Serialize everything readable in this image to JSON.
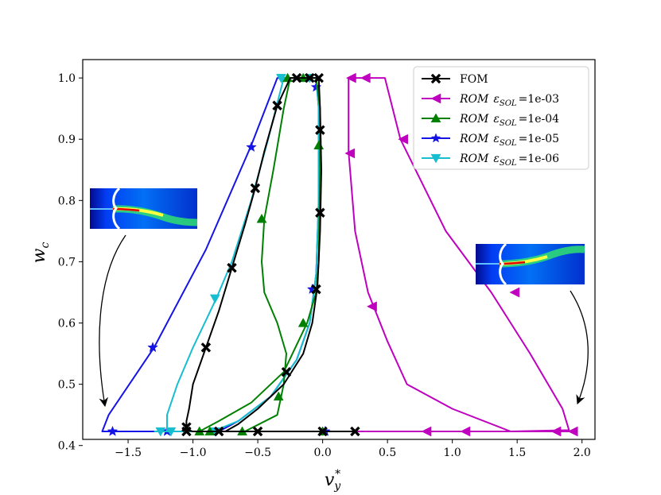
{
  "chart_data": {
    "type": "line",
    "xlabel": "v_y^*",
    "ylabel": "w_c",
    "xlim": [
      -1.85,
      2.1
    ],
    "ylim": [
      0.41,
      1.03
    ],
    "x_ticks": [
      "−1.5",
      "−1.0",
      "−0.5",
      "0.0",
      "0.5",
      "1.0",
      "1.5",
      "2.0"
    ],
    "x_tick_values": [
      -1.5,
      -1.0,
      -0.5,
      0.0,
      0.5,
      1.0,
      1.5,
      2.0
    ],
    "y_ticks": [
      "0.4",
      "0.5",
      "0.6",
      "0.7",
      "0.8",
      "0.9",
      "1.0"
    ],
    "y_tick_values": [
      0.4,
      0.5,
      0.6,
      0.7,
      0.8,
      0.9,
      1.0
    ],
    "grid": false,
    "legend_position": "top-right",
    "series": [
      {
        "name": "FOM",
        "color": "#000000",
        "marker": "X",
        "points": [
          [
            0.25,
            0.423
          ],
          [
            0.0,
            0.423
          ],
          [
            -0.5,
            0.423
          ],
          [
            -0.8,
            0.423
          ],
          [
            -1.0,
            0.423
          ],
          [
            -1.05,
            0.425
          ],
          [
            -1.05,
            0.44
          ],
          [
            -1.03,
            0.46
          ],
          [
            -1.0,
            0.5
          ],
          [
            -0.9,
            0.56
          ],
          [
            -0.8,
            0.62
          ],
          [
            -0.7,
            0.69
          ],
          [
            -0.6,
            0.76
          ],
          [
            -0.52,
            0.82
          ],
          [
            -0.45,
            0.88
          ],
          [
            -0.35,
            0.955
          ],
          [
            -0.25,
            1.0
          ],
          [
            -0.1,
            1.0
          ],
          [
            -0.03,
            1.0
          ],
          [
            -0.02,
            0.95
          ],
          [
            -0.01,
            0.85
          ],
          [
            -0.02,
            0.75
          ],
          [
            -0.04,
            0.66
          ],
          [
            -0.08,
            0.6
          ],
          [
            -0.15,
            0.55
          ],
          [
            -0.3,
            0.5
          ],
          [
            -0.5,
            0.46
          ],
          [
            -0.65,
            0.435
          ],
          [
            -0.75,
            0.423
          ]
        ],
        "marker_points": [
          [
            0.25,
            0.423
          ],
          [
            0.0,
            0.423
          ],
          [
            -0.5,
            0.423
          ],
          [
            -1.05,
            0.423
          ],
          [
            -1.05,
            0.43
          ],
          [
            -0.9,
            0.56
          ],
          [
            -0.7,
            0.69
          ],
          [
            -0.52,
            0.82
          ],
          [
            -0.35,
            0.955
          ],
          [
            -0.2,
            1.0
          ],
          [
            -0.1,
            1.0
          ],
          [
            -0.03,
            1.0
          ],
          [
            -0.02,
            0.915
          ],
          [
            -0.02,
            0.78
          ],
          [
            -0.05,
            0.655
          ],
          [
            -0.28,
            0.52
          ],
          [
            -0.8,
            0.423
          ]
        ]
      },
      {
        "name": "ROM ε_SOL = 1e-03",
        "color": "#bf00bf",
        "marker": "<",
        "points": [
          [
            1.95,
            0.423
          ],
          [
            1.9,
            0.423
          ],
          [
            1.45,
            0.423
          ],
          [
            1.0,
            0.423
          ],
          [
            0.5,
            0.423
          ],
          [
            0.2,
            0.423
          ],
          [
            0.5,
            0.423
          ],
          [
            1.45,
            0.423
          ],
          [
            1.9,
            0.425
          ],
          [
            1.85,
            0.46
          ],
          [
            1.6,
            0.55
          ],
          [
            1.3,
            0.65
          ],
          [
            0.95,
            0.75
          ],
          [
            0.6,
            0.9
          ],
          [
            0.48,
            1.0
          ],
          [
            0.2,
            1.0
          ],
          [
            0.2,
            0.95
          ],
          [
            0.2,
            0.88
          ],
          [
            0.25,
            0.75
          ],
          [
            0.35,
            0.65
          ],
          [
            0.5,
            0.57
          ],
          [
            0.65,
            0.5
          ],
          [
            1.0,
            0.46
          ],
          [
            1.45,
            0.423
          ]
        ],
        "marker_points": [
          [
            1.93,
            0.423
          ],
          [
            1.8,
            0.423
          ],
          [
            1.1,
            0.423
          ],
          [
            0.8,
            0.423
          ],
          [
            1.48,
            0.65
          ],
          [
            0.62,
            0.9
          ],
          [
            0.33,
            1.0
          ],
          [
            0.22,
            1.0
          ],
          [
            0.21,
            0.877
          ],
          [
            0.38,
            0.627
          ]
        ]
      },
      {
        "name": "ROM ε_SOL = 1e-04",
        "color": "#008000",
        "marker": "^",
        "points": [
          [
            -0.25,
            0.423
          ],
          [
            -0.6,
            0.423
          ],
          [
            -0.95,
            0.423
          ],
          [
            -0.6,
            0.423
          ],
          [
            -0.35,
            0.45
          ],
          [
            -0.3,
            0.5
          ],
          [
            -0.28,
            0.55
          ],
          [
            -0.35,
            0.6
          ],
          [
            -0.45,
            0.65
          ],
          [
            -0.47,
            0.7
          ],
          [
            -0.45,
            0.77
          ],
          [
            -0.38,
            0.85
          ],
          [
            -0.3,
            0.95
          ],
          [
            -0.25,
            1.0
          ],
          [
            -0.05,
            1.0
          ],
          [
            -0.02,
            0.95
          ],
          [
            -0.02,
            0.85
          ],
          [
            -0.03,
            0.7
          ],
          [
            -0.05,
            0.65
          ],
          [
            -0.12,
            0.6
          ],
          [
            -0.3,
            0.52
          ],
          [
            -0.55,
            0.47
          ],
          [
            -0.8,
            0.44
          ],
          [
            -0.95,
            0.423
          ]
        ],
        "marker_points": [
          [
            -0.95,
            0.423
          ],
          [
            -0.87,
            0.423
          ],
          [
            -0.62,
            0.423
          ],
          [
            0.0,
            0.423
          ],
          [
            -0.34,
            0.48
          ],
          [
            -0.47,
            0.77
          ],
          [
            -0.27,
            1.0
          ],
          [
            -0.15,
            1.0
          ],
          [
            -0.03,
            0.89
          ],
          [
            -0.15,
            0.6
          ]
        ]
      },
      {
        "name": "ROM ε_SOL = 1e-05",
        "color": "#1414e6",
        "marker": "*",
        "points": [
          [
            0.05,
            0.423
          ],
          [
            -0.5,
            0.423
          ],
          [
            -1.2,
            0.423
          ],
          [
            -1.7,
            0.423
          ],
          [
            -1.65,
            0.45
          ],
          [
            -1.3,
            0.56
          ],
          [
            -0.9,
            0.72
          ],
          [
            -0.55,
            0.89
          ],
          [
            -0.35,
            1.0
          ],
          [
            -0.05,
            1.0
          ],
          [
            -0.03,
            0.95
          ],
          [
            -0.03,
            0.8
          ],
          [
            -0.05,
            0.68
          ],
          [
            -0.1,
            0.6
          ],
          [
            -0.2,
            0.54
          ],
          [
            -0.4,
            0.48
          ],
          [
            -0.65,
            0.44
          ],
          [
            -0.8,
            0.423
          ]
        ],
        "marker_points": [
          [
            -1.62,
            0.423
          ],
          [
            -1.2,
            0.423
          ],
          [
            0.02,
            0.423
          ],
          [
            -1.31,
            0.56
          ],
          [
            -0.55,
            0.887
          ],
          [
            -0.05,
            0.985
          ],
          [
            -0.08,
            0.655
          ]
        ]
      },
      {
        "name": "ROM ε_SOL = 1e-06",
        "color": "#17becf",
        "marker": "v",
        "points": [
          [
            -1.3,
            0.423
          ],
          [
            -1.0,
            0.423
          ],
          [
            -0.8,
            0.423
          ],
          [
            -1.2,
            0.423
          ],
          [
            -1.2,
            0.45
          ],
          [
            -1.12,
            0.5
          ],
          [
            -1.0,
            0.56
          ],
          [
            -0.82,
            0.64
          ],
          [
            -0.7,
            0.7
          ],
          [
            -0.55,
            0.8
          ],
          [
            -0.42,
            0.9
          ],
          [
            -0.3,
            1.0
          ],
          [
            -0.05,
            1.0
          ],
          [
            -0.03,
            0.95
          ],
          [
            -0.03,
            0.8
          ],
          [
            -0.05,
            0.68
          ],
          [
            -0.1,
            0.6
          ],
          [
            -0.2,
            0.54
          ],
          [
            -0.4,
            0.48
          ],
          [
            -0.65,
            0.44
          ],
          [
            -0.85,
            0.423
          ]
        ],
        "marker_points": [
          [
            -1.25,
            0.423
          ],
          [
            -1.17,
            0.423
          ],
          [
            -0.83,
            0.423
          ],
          [
            -0.83,
            0.64
          ],
          [
            -0.32,
            1.0
          ],
          [
            -0.1,
            1.0
          ]
        ]
      }
    ]
  },
  "legend": [
    {
      "label": "FOM",
      "italic_label": "",
      "eps_text": "",
      "value_text": ""
    },
    {
      "label": "",
      "italic_label": "ROM",
      "eps_text": "ε",
      "value_text": "=1e-03"
    },
    {
      "label": "",
      "italic_label": "ROM",
      "eps_text": "ε",
      "value_text": "=1e-04"
    },
    {
      "label": "",
      "italic_label": "ROM",
      "eps_text": "ε",
      "value_text": "=1e-05"
    },
    {
      "label": "",
      "italic_label": "ROM",
      "eps_text": "ε",
      "value_text": "=1e-06"
    }
  ],
  "legend_subscript": "SOL",
  "xlabel_main": "v",
  "xlabel_sub": "y",
  "xlabel_sup": "*",
  "ylabel_main": "w",
  "ylabel_sub": "c"
}
